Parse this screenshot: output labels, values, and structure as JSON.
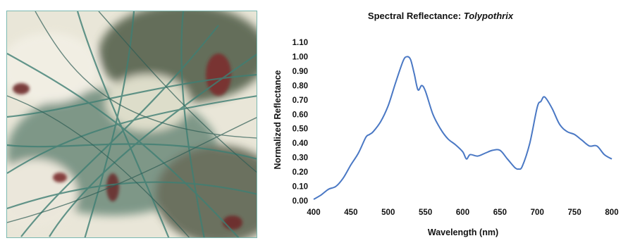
{
  "photo": {
    "icon": "microscopy-image",
    "colors": [
      "#f2efe4",
      "#3f7f74",
      "#7b2e2e",
      "#5f6b4a"
    ]
  },
  "chart_data": {
    "type": "line",
    "title_prefix": "Spectral Reflectance: ",
    "title_italic": "Tolypothrix",
    "xlabel": "Wavelength (nm)",
    "ylabel": "Normalized Reflectance",
    "xlim": [
      400,
      800
    ],
    "ylim": [
      0,
      1.1
    ],
    "xticks": [
      "400",
      "450",
      "500",
      "550",
      "600",
      "650",
      "700",
      "750",
      "800"
    ],
    "yticks": [
      "0.00",
      "0.10",
      "0.20",
      "0.30",
      "0.40",
      "0.50",
      "0.60",
      "0.70",
      "0.80",
      "0.90",
      "1.00",
      "1.10"
    ],
    "grid": false,
    "line_color": "#4a78c4",
    "series": [
      {
        "x": [
          400,
          410,
          420,
          430,
          440,
          450,
          460,
          470,
          475,
          480,
          490,
          500,
          510,
          520,
          525,
          530,
          535,
          540,
          545,
          550,
          560,
          570,
          580,
          590,
          600,
          605,
          610,
          620,
          630,
          640,
          650,
          660,
          670,
          675,
          680,
          690,
          700,
          705,
          710,
          720,
          730,
          740,
          750,
          760,
          770,
          780,
          790,
          800
        ],
        "y": [
          0.01,
          0.04,
          0.08,
          0.1,
          0.16,
          0.25,
          0.33,
          0.44,
          0.46,
          0.48,
          0.55,
          0.66,
          0.82,
          0.97,
          1.0,
          0.98,
          0.88,
          0.77,
          0.8,
          0.76,
          0.6,
          0.5,
          0.43,
          0.39,
          0.34,
          0.29,
          0.32,
          0.31,
          0.33,
          0.35,
          0.35,
          0.29,
          0.23,
          0.22,
          0.24,
          0.4,
          0.65,
          0.69,
          0.72,
          0.64,
          0.53,
          0.48,
          0.46,
          0.42,
          0.38,
          0.38,
          0.32,
          0.29
        ]
      }
    ]
  }
}
